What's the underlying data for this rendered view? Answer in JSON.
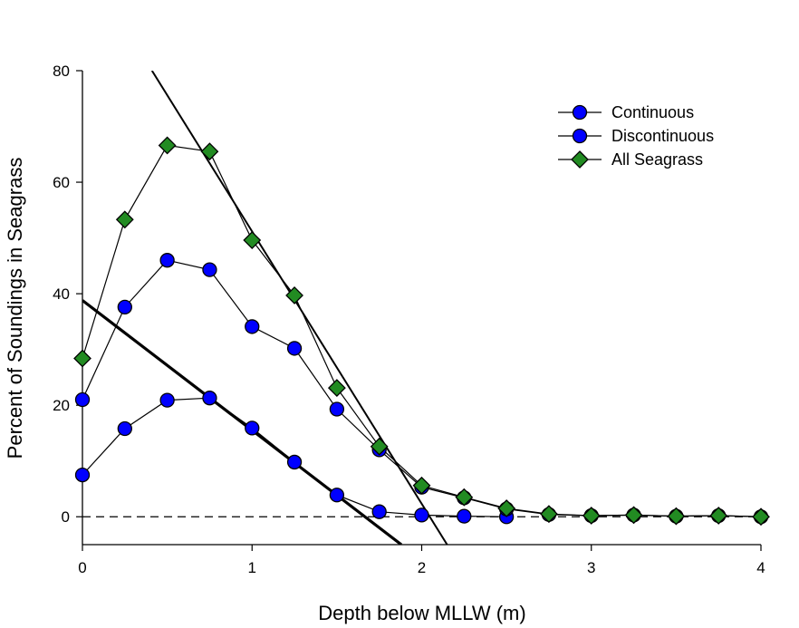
{
  "chart_data": {
    "type": "line",
    "xlabel": "Depth below MLLW (m)",
    "ylabel": "Percent of Soundings in Seagrass",
    "xlim": [
      0,
      4
    ],
    "ylim": [
      -5,
      80
    ],
    "xticks": [
      0,
      1,
      2,
      3,
      4
    ],
    "yticks": [
      0,
      20,
      40,
      60,
      80
    ],
    "grid": false,
    "legend_position": "top-right",
    "series": [
      {
        "name": "Continuous",
        "marker": "circle",
        "color": "#0000ff",
        "points": [
          [
            0,
            7.5
          ],
          [
            0.25,
            15.8
          ],
          [
            0.5,
            20.9
          ],
          [
            0.75,
            21.3
          ],
          [
            1.0,
            15.9
          ],
          [
            1.25,
            9.8
          ],
          [
            1.5,
            3.9
          ],
          [
            1.75,
            0.9
          ],
          [
            2.0,
            0.3
          ],
          [
            2.25,
            0.1
          ],
          [
            2.5,
            0.0
          ]
        ]
      },
      {
        "name": "Discontinuous",
        "marker": "circle",
        "color": "#0000ff",
        "points": [
          [
            0,
            21.0
          ],
          [
            0.25,
            37.6
          ],
          [
            0.5,
            46.0
          ],
          [
            0.75,
            44.3
          ],
          [
            1.0,
            34.1
          ],
          [
            1.25,
            30.2
          ],
          [
            1.5,
            19.3
          ],
          [
            1.75,
            12.0
          ],
          [
            2.0,
            5.3
          ],
          [
            2.25,
            3.4
          ],
          [
            2.5,
            1.4
          ],
          [
            2.75,
            0.4
          ],
          [
            3.0,
            0.2
          ],
          [
            3.25,
            0.3
          ],
          [
            3.5,
            0.1
          ],
          [
            3.75,
            0.2
          ],
          [
            4.0,
            0.0
          ]
        ]
      },
      {
        "name": "All Seagrass",
        "marker": "diamond",
        "color": "#228b22",
        "points": [
          [
            0,
            28.4
          ],
          [
            0.25,
            53.3
          ],
          [
            0.5,
            66.6
          ],
          [
            0.75,
            65.5
          ],
          [
            1.0,
            49.6
          ],
          [
            1.25,
            39.7
          ],
          [
            1.5,
            23.1
          ],
          [
            1.75,
            12.6
          ],
          [
            2.0,
            5.6
          ],
          [
            2.25,
            3.5
          ],
          [
            2.5,
            1.5
          ],
          [
            2.75,
            0.5
          ],
          [
            3.0,
            0.2
          ],
          [
            3.25,
            0.3
          ],
          [
            3.5,
            0.1
          ],
          [
            3.75,
            0.2
          ],
          [
            4.0,
            0.0
          ]
        ]
      }
    ],
    "reference_lines": [
      {
        "points": [
          [
            0,
            38.8
          ],
          [
            1.88,
            -5
          ]
        ],
        "style": "solid-thick"
      },
      {
        "points": [
          [
            0.41,
            80
          ],
          [
            2.15,
            -5
          ]
        ],
        "style": "solid"
      },
      {
        "points": [
          [
            0,
            0
          ],
          [
            4,
            0
          ]
        ],
        "style": "dashed"
      }
    ]
  }
}
